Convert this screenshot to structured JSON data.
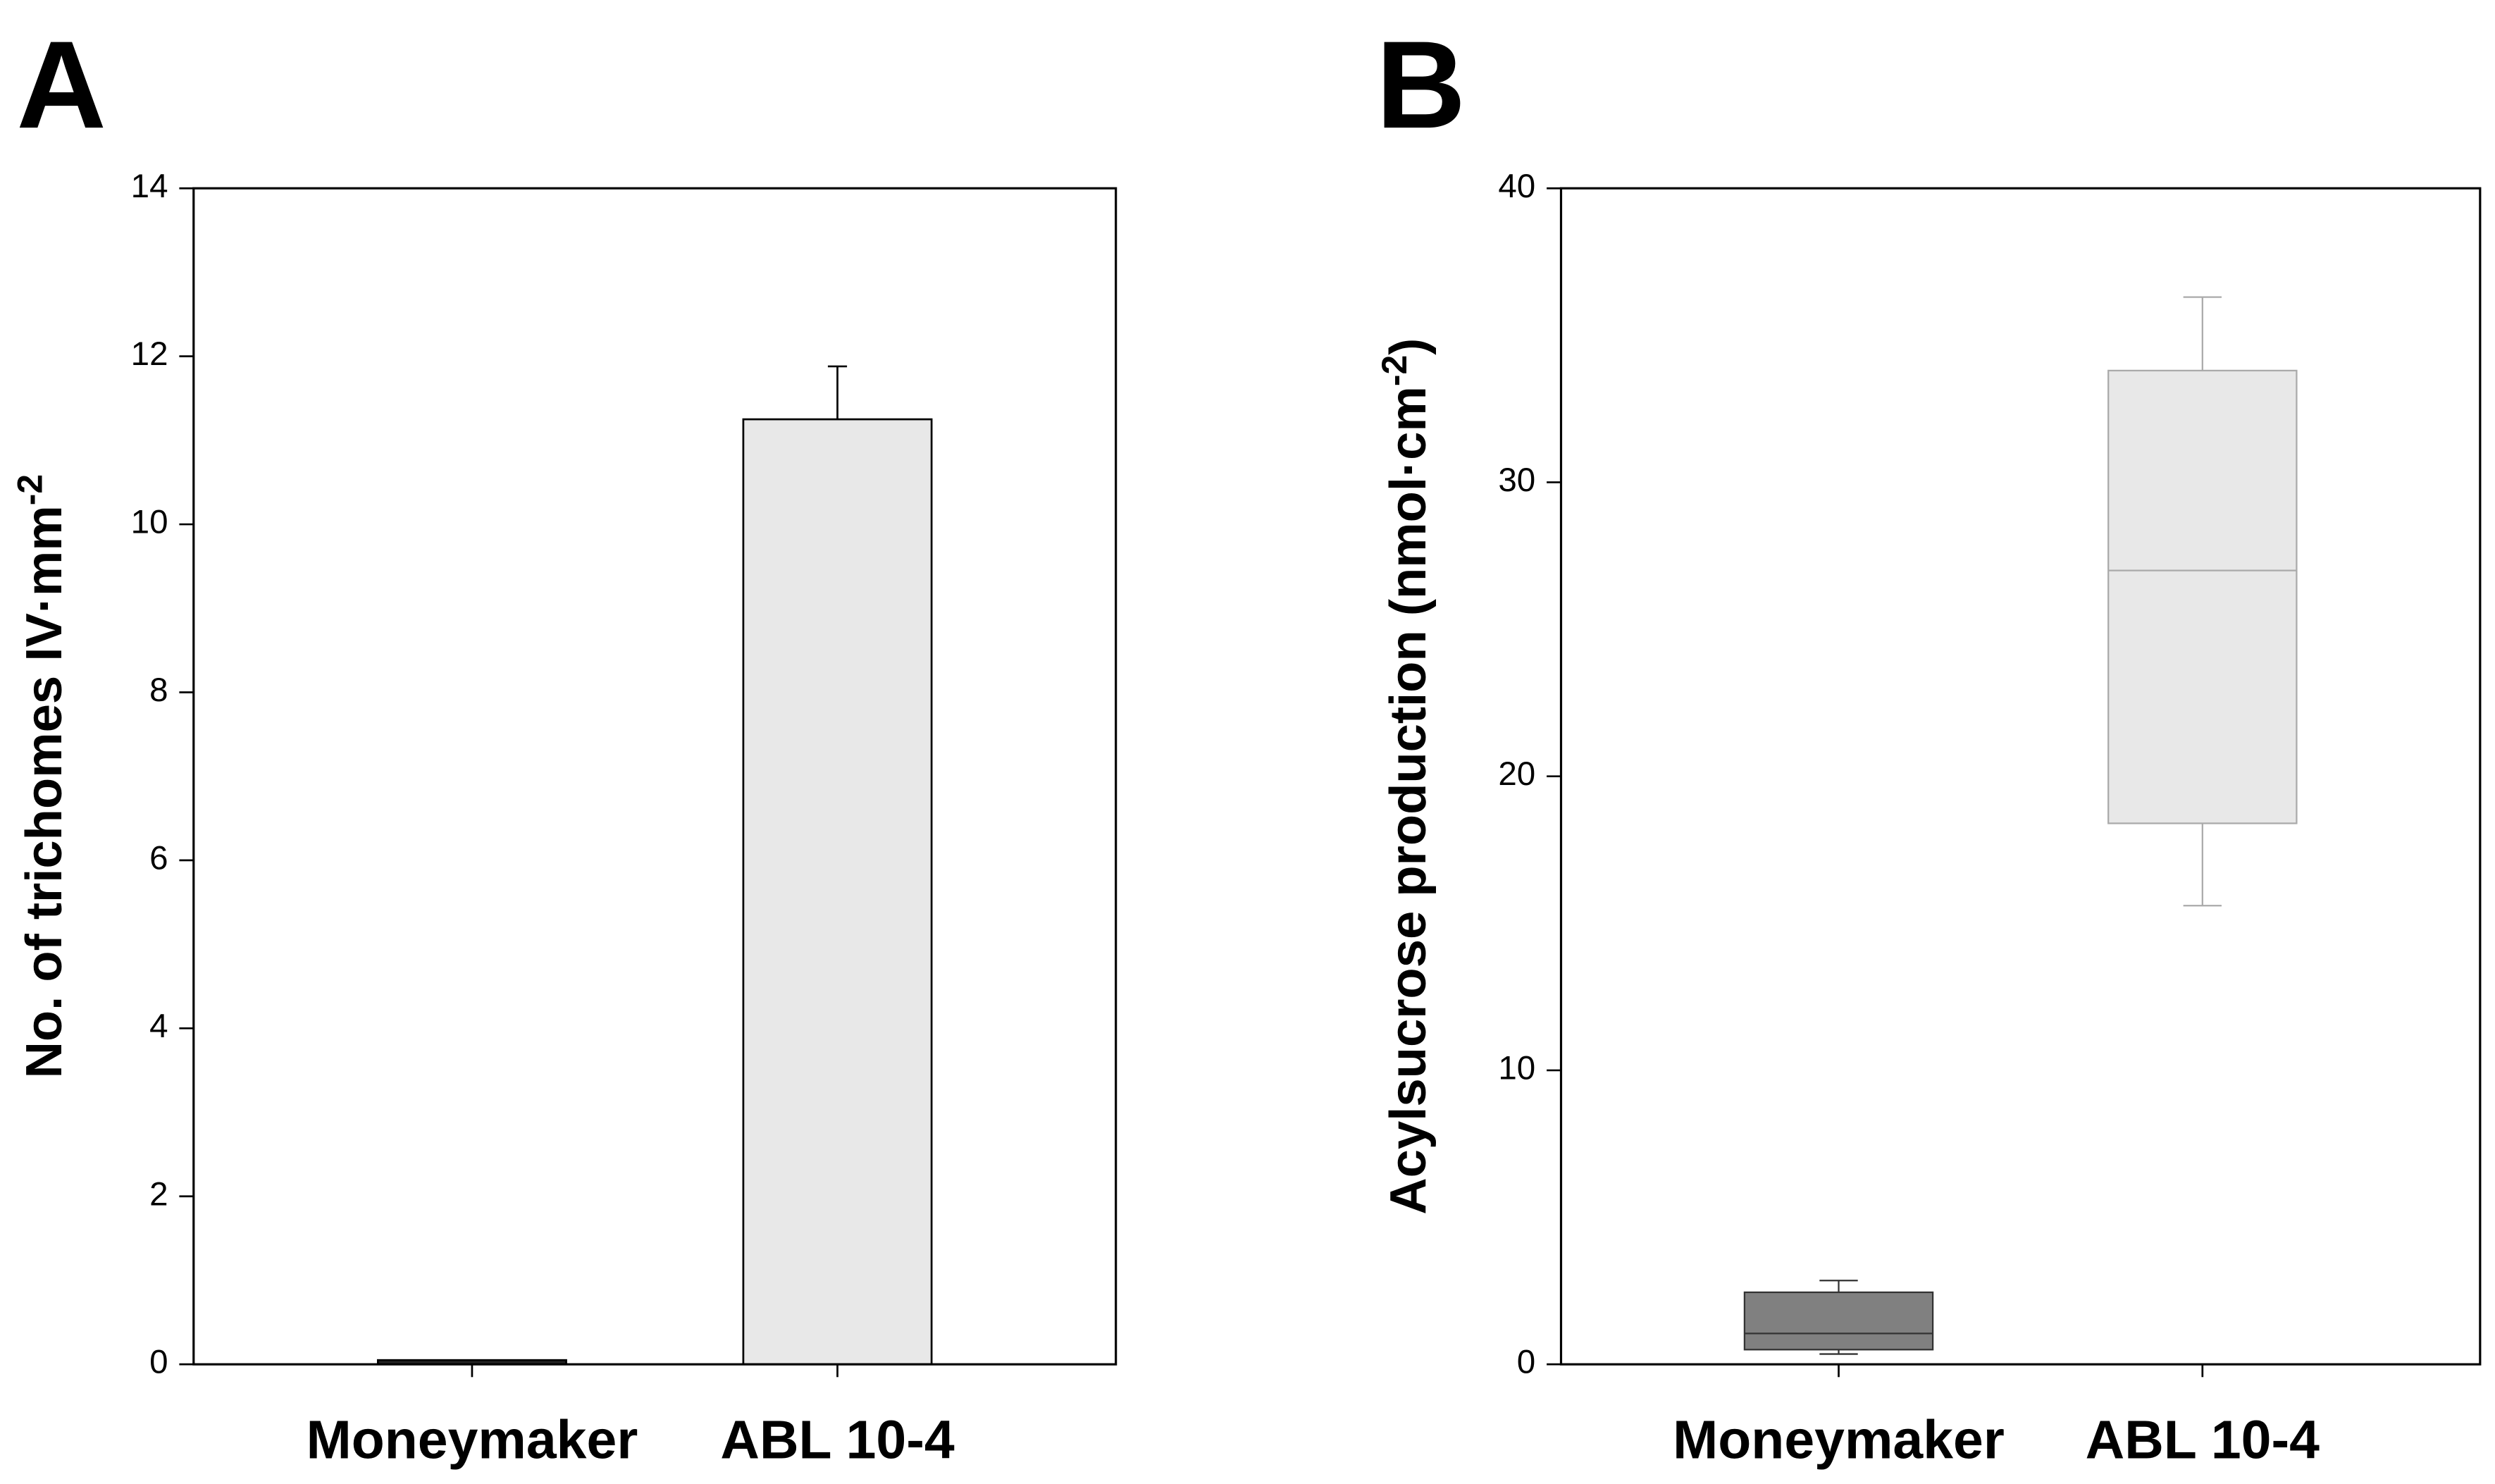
{
  "chart_data": [
    {
      "type": "bar",
      "panel_label": "A",
      "ylabel": "No. of trichomes IV·mm",
      "ylabel_sup": "-2",
      "categories": [
        "Moneymaker",
        "ABL 10-4"
      ],
      "values": [
        0.05,
        11.25
      ],
      "errors": [
        null,
        0.63
      ],
      "colors": [
        "#222222",
        "#e8e8e8"
      ],
      "ylim": [
        0,
        14
      ],
      "yticks": [
        0,
        2,
        4,
        6,
        8,
        10,
        12,
        14
      ]
    },
    {
      "type": "box",
      "panel_label": "B",
      "ylabel": "Acylsucrose production (nmol·cm",
      "ylabel_sup": "-2",
      "ylabel_end": ")",
      "categories": [
        "Moneymaker",
        "ABL 10-4"
      ],
      "whisker_low": [
        0.35,
        15.6
      ],
      "q1": [
        0.5,
        18.4
      ],
      "median": [
        1.05,
        27
      ],
      "q3": [
        2.45,
        33.8
      ],
      "whisker_high": [
        2.85,
        36.3
      ],
      "colors": [
        "#808080",
        "#e8e8e8"
      ],
      "edge_colors": [
        "#333333",
        "#aaaaaa"
      ],
      "ylim": [
        0,
        40
      ],
      "yticks": [
        0,
        10,
        20,
        30,
        40
      ]
    }
  ]
}
